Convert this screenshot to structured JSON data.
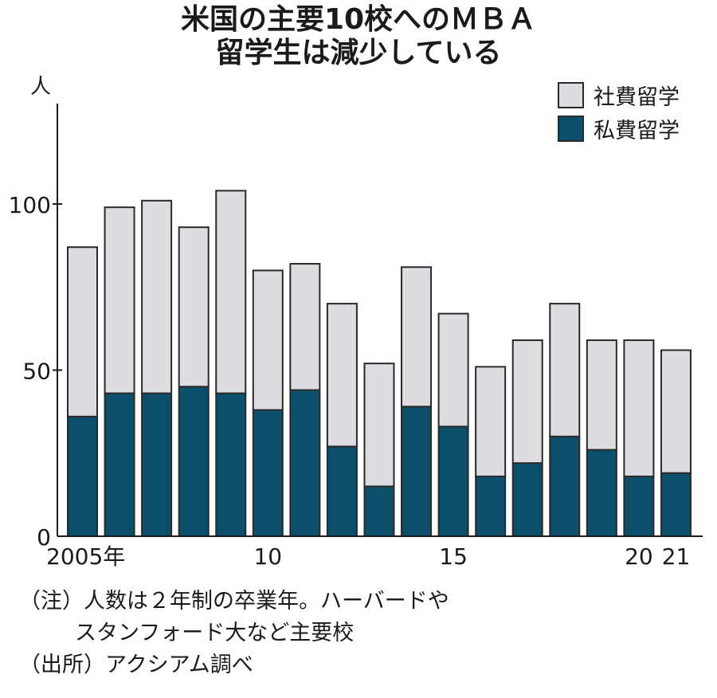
{
  "title_lines": [
    "米国の主要10校へのＭＢＡ",
    "留学生は減少している"
  ],
  "notes": {
    "note_line1": "（注）人数は２年制の卒業年。ハーバードや",
    "note_line2": "スタンフォード大など主要校",
    "source": "（出所）アクシアム調べ"
  },
  "colors": {
    "company_sponsored": "#dddde1",
    "self_funded": "#0b4f6a",
    "outline": "#2a2a2a"
  },
  "chart_data": {
    "type": "bar",
    "stacked": true,
    "title": "米国の主要10校へのＭＢＡ留学生は減少している",
    "xlabel": "",
    "ylabel": "人",
    "ylim": [
      0,
      125
    ],
    "yticks": [
      0,
      50,
      100
    ],
    "ytick_labels": [
      "0",
      "50",
      "100"
    ],
    "x": [
      2005,
      2006,
      2007,
      2008,
      2009,
      2010,
      2011,
      2012,
      2013,
      2014,
      2015,
      2016,
      2017,
      2018,
      2019,
      2020,
      2021
    ],
    "xtick_labels": [
      {
        "year": 2005,
        "label": "2005年"
      },
      {
        "year": 2010,
        "label": "10"
      },
      {
        "year": 2015,
        "label": "15"
      },
      {
        "year": 2020,
        "label": "20"
      },
      {
        "year": 2021,
        "label": "21"
      }
    ],
    "legend_position": "top-right",
    "grid": false,
    "series": [
      {
        "name": "私費留学",
        "key": "self_funded",
        "values": [
          36,
          43,
          43,
          45,
          43,
          38,
          44,
          27,
          15,
          39,
          33,
          18,
          22,
          30,
          26,
          18,
          19
        ]
      },
      {
        "name": "社費留学",
        "key": "company_sponsored",
        "values": [
          51,
          56,
          58,
          48,
          61,
          42,
          38,
          43,
          37,
          42,
          34,
          33,
          37,
          40,
          33,
          41,
          37
        ]
      }
    ],
    "totals": [
      87,
      99,
      101,
      93,
      104,
      80,
      82,
      70,
      52,
      81,
      67,
      51,
      59,
      70,
      59,
      59,
      56
    ]
  }
}
